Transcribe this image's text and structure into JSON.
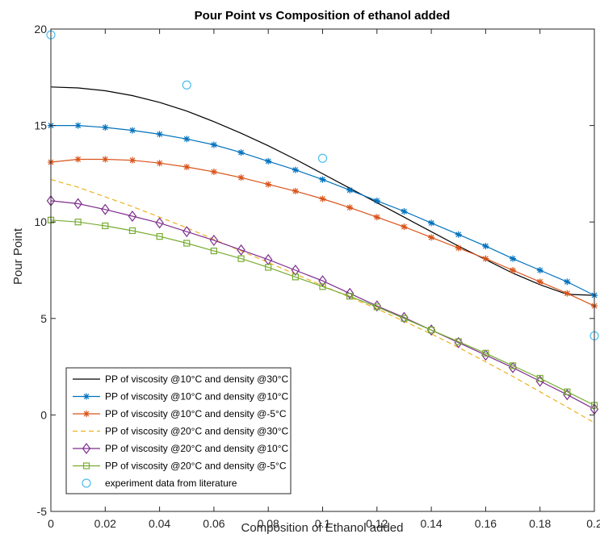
{
  "chart_data": {
    "type": "line",
    "title": "Pour Point vs Composition of ethanol added",
    "xlabel": "Composition of Ethanol added",
    "ylabel": "Pour Point",
    "xlim": [
      0,
      0.2
    ],
    "ylim": [
      -5,
      20
    ],
    "xticks": [
      0,
      0.02,
      0.04,
      0.06,
      0.08,
      0.1,
      0.12,
      0.14,
      0.16,
      0.18,
      0.2
    ],
    "xtick_labels": [
      "0",
      "0.02",
      "0.04",
      "0.06",
      "0.08",
      "0.1",
      "0.12",
      "0.14",
      "0.16",
      "0.18",
      "0.2"
    ],
    "yticks": [
      -5,
      0,
      5,
      10,
      15,
      20
    ],
    "ytick_labels": [
      "-5",
      "0",
      "5",
      "10",
      "15",
      "20"
    ],
    "grid": false,
    "legend_position": "bottom-left",
    "x": [
      0,
      0.01,
      0.02,
      0.03,
      0.04,
      0.05,
      0.06,
      0.07,
      0.08,
      0.09,
      0.1,
      0.11,
      0.12,
      0.13,
      0.14,
      0.15,
      0.16,
      0.17,
      0.18,
      0.19,
      0.2
    ],
    "series": [
      {
        "name": "PP of viscosity @10°C and density @30°C",
        "color": "#000000",
        "marker": "none",
        "dash": "solid",
        "values": [
          17.0,
          16.95,
          16.8,
          16.55,
          16.2,
          15.75,
          15.2,
          14.6,
          13.95,
          13.25,
          12.5,
          11.75,
          11.0,
          10.25,
          9.5,
          8.75,
          8.05,
          7.35,
          6.75,
          6.25,
          6.2
        ]
      },
      {
        "name": "PP of viscosity @10°C and density @10°C",
        "color": "#0072BD",
        "marker": "star",
        "dash": "solid",
        "values": [
          15.0,
          15.0,
          14.9,
          14.75,
          14.55,
          14.3,
          14.0,
          13.6,
          13.15,
          12.7,
          12.2,
          11.65,
          11.1,
          10.55,
          9.95,
          9.35,
          8.75,
          8.1,
          7.5,
          6.9,
          6.2
        ]
      },
      {
        "name": "PP of viscosity @10°C and density @-5°C",
        "color": "#D95319",
        "marker": "star",
        "dash": "solid",
        "values": [
          13.1,
          13.25,
          13.25,
          13.2,
          13.05,
          12.85,
          12.6,
          12.3,
          11.95,
          11.6,
          11.2,
          10.75,
          10.25,
          9.75,
          9.2,
          8.65,
          8.1,
          7.5,
          6.9,
          6.3,
          5.65
        ]
      },
      {
        "name": "PP of viscosity @20°C and density @30°C",
        "color": "#EDB120",
        "marker": "none",
        "dash": "dashed",
        "values": [
          12.2,
          11.8,
          11.3,
          10.8,
          10.25,
          9.7,
          9.1,
          8.5,
          7.9,
          7.3,
          6.7,
          6.1,
          5.5,
          4.85,
          4.2,
          3.5,
          2.75,
          2.0,
          1.2,
          0.4,
          -0.4
        ]
      },
      {
        "name": "PP of viscosity @20°C and density @10°C",
        "color": "#7E2F8E",
        "marker": "diamond",
        "dash": "solid",
        "values": [
          11.1,
          10.95,
          10.65,
          10.3,
          9.95,
          9.5,
          9.05,
          8.55,
          8.05,
          7.5,
          6.95,
          6.3,
          5.65,
          5.05,
          4.4,
          3.75,
          3.1,
          2.45,
          1.75,
          1.05,
          0.3
        ]
      },
      {
        "name": "PP of viscosity @20°C and density @-5°C",
        "color": "#77AC30",
        "marker": "square",
        "dash": "solid",
        "values": [
          10.1,
          10.0,
          9.8,
          9.55,
          9.25,
          8.9,
          8.5,
          8.1,
          7.65,
          7.15,
          6.65,
          6.15,
          5.6,
          5.0,
          4.4,
          3.8,
          3.2,
          2.55,
          1.9,
          1.2,
          0.5
        ]
      }
    ],
    "scatter": {
      "name": "experiment data from literature",
      "color": "#4DBEEE",
      "marker": "circle",
      "x": [
        0,
        0.05,
        0.1,
        0.2
      ],
      "y": [
        19.7,
        17.1,
        13.3,
        4.1
      ]
    }
  }
}
